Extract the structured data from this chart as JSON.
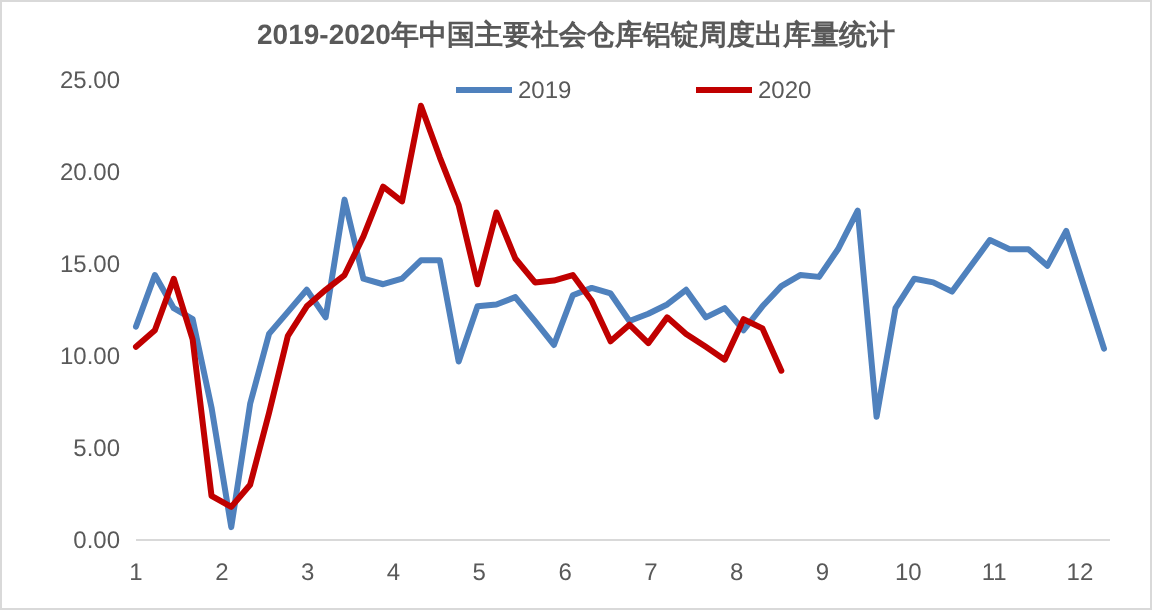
{
  "chart_data": {
    "type": "line",
    "title": "2019-2020年中国主要社会仓库铝锭周度出库量统计",
    "x": [
      1.0,
      1.22,
      1.44,
      1.66,
      1.88,
      2.11,
      2.33,
      2.55,
      2.77,
      2.99,
      3.21,
      3.43,
      3.65,
      3.88,
      4.1,
      4.32,
      4.54,
      4.76,
      4.98,
      5.2,
      5.42,
      5.65,
      5.87,
      6.09,
      6.31,
      6.53,
      6.75,
      6.97,
      7.19,
      7.41,
      7.64,
      7.86,
      8.08,
      8.3,
      8.52,
      8.74,
      8.96,
      9.18,
      9.41,
      9.63,
      9.85,
      10.07,
      10.29,
      10.51,
      10.73,
      10.95,
      11.18,
      11.4,
      11.62,
      11.84,
      12.06,
      12.28
    ],
    "series": [
      {
        "name": "2019",
        "color": "#4f81bd",
        "values": [
          11.6,
          14.4,
          12.6,
          12.0,
          7.2,
          0.7,
          7.4,
          11.2,
          12.4,
          13.6,
          12.1,
          18.5,
          14.2,
          13.9,
          14.2,
          15.2,
          15.2,
          9.7,
          12.7,
          12.8,
          13.2,
          11.9,
          10.6,
          13.3,
          13.7,
          13.4,
          11.9,
          12.3,
          12.8,
          13.6,
          12.1,
          12.6,
          11.4,
          12.7,
          13.8,
          14.4,
          14.3,
          15.8,
          17.9,
          6.7,
          12.6,
          14.2,
          14.0,
          13.5,
          14.9,
          16.3,
          15.8,
          15.8,
          14.9,
          16.8,
          13.6,
          10.4
        ]
      },
      {
        "name": "2020",
        "color": "#c00000",
        "x": [
          1.0,
          1.22,
          1.44,
          1.66,
          1.88,
          2.11,
          2.33,
          2.55,
          2.77,
          2.99,
          3.21,
          3.43,
          3.65,
          3.88,
          4.1,
          4.32,
          4.54,
          4.76,
          4.98,
          5.2,
          5.42,
          5.65,
          5.87,
          6.09,
          6.31,
          6.53,
          6.75,
          6.97,
          7.19,
          7.41,
          7.64,
          7.86,
          8.08,
          8.3,
          8.52
        ],
        "values": [
          10.5,
          11.4,
          14.2,
          10.9,
          2.4,
          1.8,
          3.0,
          6.9,
          11.1,
          12.7,
          13.6,
          14.4,
          16.5,
          19.2,
          18.4,
          23.6,
          20.8,
          18.2,
          13.9,
          17.8,
          15.3,
          14.0,
          14.1,
          14.4,
          13.0,
          10.8,
          11.7,
          10.7,
          12.1,
          11.2,
          10.5,
          9.8,
          12.0,
          11.5,
          9.2
        ]
      }
    ],
    "xlim": [
      1,
      12.35
    ],
    "xticks": [
      1,
      2,
      3,
      4,
      5,
      6,
      7,
      8,
      9,
      10,
      11,
      12
    ],
    "ylim": [
      0,
      25
    ],
    "yticks": [
      {
        "value": 0,
        "label": "0.00"
      },
      {
        "value": 5,
        "label": "5.00"
      },
      {
        "value": 10,
        "label": "10.00"
      },
      {
        "value": 15,
        "label": "15.00"
      },
      {
        "value": 20,
        "label": "20.00"
      },
      {
        "value": 25,
        "label": "25.00"
      }
    ],
    "grid": false,
    "legend": "top",
    "marker": "none",
    "line_style": "solid"
  }
}
